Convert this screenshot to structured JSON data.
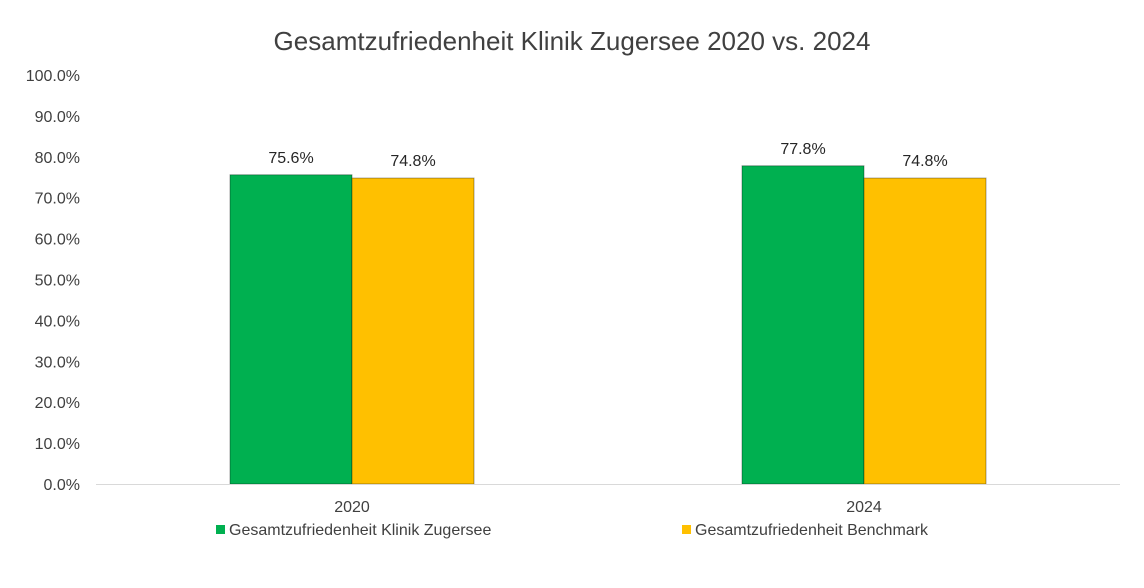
{
  "chart_data": {
    "type": "bar",
    "title": "Gesamtzufriedenheit Klinik Zugersee 2020 vs. 2024",
    "xlabel": "",
    "ylabel": "",
    "categories": [
      "2020",
      "2024"
    ],
    "series": [
      {
        "name": "Gesamtzufriedenheit Klinik Zugersee",
        "values": [
          75.6,
          77.8
        ],
        "value_labels": [
          "75.6%",
          "77.8%"
        ],
        "color": "#00B050"
      },
      {
        "name": "Gesamtzufriedenheit Benchmark",
        "values": [
          74.8,
          74.8
        ],
        "value_labels": [
          "74.8%",
          "74.8%"
        ],
        "color": "#FFC000"
      }
    ],
    "ylim": [
      0,
      100
    ],
    "yticks": [
      0,
      10,
      20,
      30,
      40,
      50,
      60,
      70,
      80,
      90,
      100
    ],
    "ytick_labels": [
      "0.0%",
      "10.0%",
      "20.0%",
      "30.0%",
      "40.0%",
      "50.0%",
      "60.0%",
      "70.0%",
      "80.0%",
      "90.0%",
      "100.0%"
    ],
    "grid": false,
    "legend_position": "bottom",
    "axis_color": "#D9D9D9"
  }
}
